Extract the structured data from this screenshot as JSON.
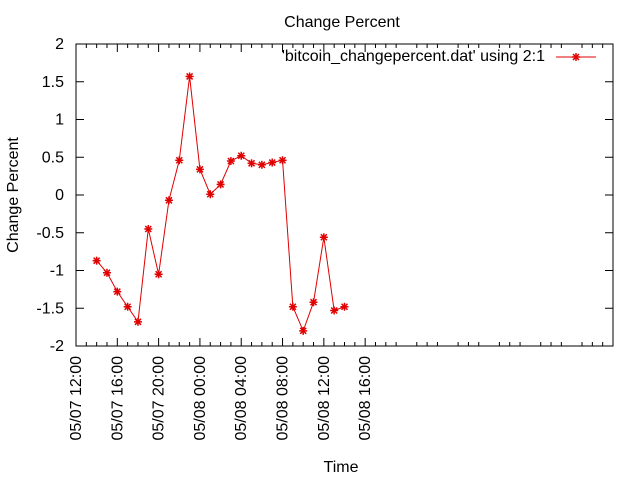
{
  "chart_data": {
    "type": "line",
    "title": "Change Percent",
    "xlabel": "Time",
    "ylabel": "Change Percent",
    "legend": {
      "label": "'bitcoin_changepercent.dat' using 2:1",
      "position": "top-right"
    },
    "series_color": "#e00000",
    "xlim_hours": [
      0,
      52
    ],
    "ylim": [
      -2,
      2
    ],
    "grid": false,
    "x_ticks": [
      {
        "hour": 0,
        "label": "05/07 12:00"
      },
      {
        "hour": 4,
        "label": "05/07 16:00"
      },
      {
        "hour": 8,
        "label": "05/07 20:00"
      },
      {
        "hour": 12,
        "label": "05/08 00:00"
      },
      {
        "hour": 16,
        "label": "05/08 04:00"
      },
      {
        "hour": 20,
        "label": "05/08 08:00"
      },
      {
        "hour": 24,
        "label": "05/08 12:00"
      },
      {
        "hour": 28,
        "label": "05/08 16:00"
      }
    ],
    "y_ticks": [
      {
        "value": 2,
        "label": "2"
      },
      {
        "value": 1.5,
        "label": "1.5"
      },
      {
        "value": 1,
        "label": "1"
      },
      {
        "value": 0.5,
        "label": "0.5"
      },
      {
        "value": 0,
        "label": "0"
      },
      {
        "value": -0.5,
        "label": "-0.5"
      },
      {
        "value": -1,
        "label": "-1"
      },
      {
        "value": -1.5,
        "label": "-1.5"
      },
      {
        "value": -2,
        "label": "-2"
      }
    ],
    "series": [
      {
        "points": [
          {
            "x": "05/07 14:00",
            "y": -0.87
          },
          {
            "x": "05/07 15:00",
            "y": -1.03
          },
          {
            "x": "05/07 16:00",
            "y": -1.28
          },
          {
            "x": "05/07 17:00",
            "y": -1.48
          },
          {
            "x": "05/07 18:00",
            "y": -1.68
          },
          {
            "x": "05/07 19:00",
            "y": -0.45
          },
          {
            "x": "05/07 20:00",
            "y": -1.05
          },
          {
            "x": "05/07 21:00",
            "y": -0.07
          },
          {
            "x": "05/07 22:00",
            "y": 0.46
          },
          {
            "x": "05/07 23:00",
            "y": 1.57
          },
          {
            "x": "05/08 00:00",
            "y": 0.34
          },
          {
            "x": "05/08 01:00",
            "y": 0.01
          },
          {
            "x": "05/08 02:00",
            "y": 0.14
          },
          {
            "x": "05/08 03:00",
            "y": 0.45
          },
          {
            "x": "05/08 04:00",
            "y": 0.52
          },
          {
            "x": "05/08 05:00",
            "y": 0.42
          },
          {
            "x": "05/08 06:00",
            "y": 0.4
          },
          {
            "x": "05/08 07:00",
            "y": 0.43
          },
          {
            "x": "05/08 08:00",
            "y": 0.46
          },
          {
            "x": "05/08 09:00",
            "y": -1.48
          },
          {
            "x": "05/08 10:00",
            "y": -1.8
          },
          {
            "x": "05/08 11:00",
            "y": -1.42
          },
          {
            "x": "05/08 12:00",
            "y": -0.56
          },
          {
            "x": "05/08 13:00",
            "y": -1.53
          },
          {
            "x": "05/08 14:00",
            "y": -1.48
          }
        ]
      }
    ]
  }
}
